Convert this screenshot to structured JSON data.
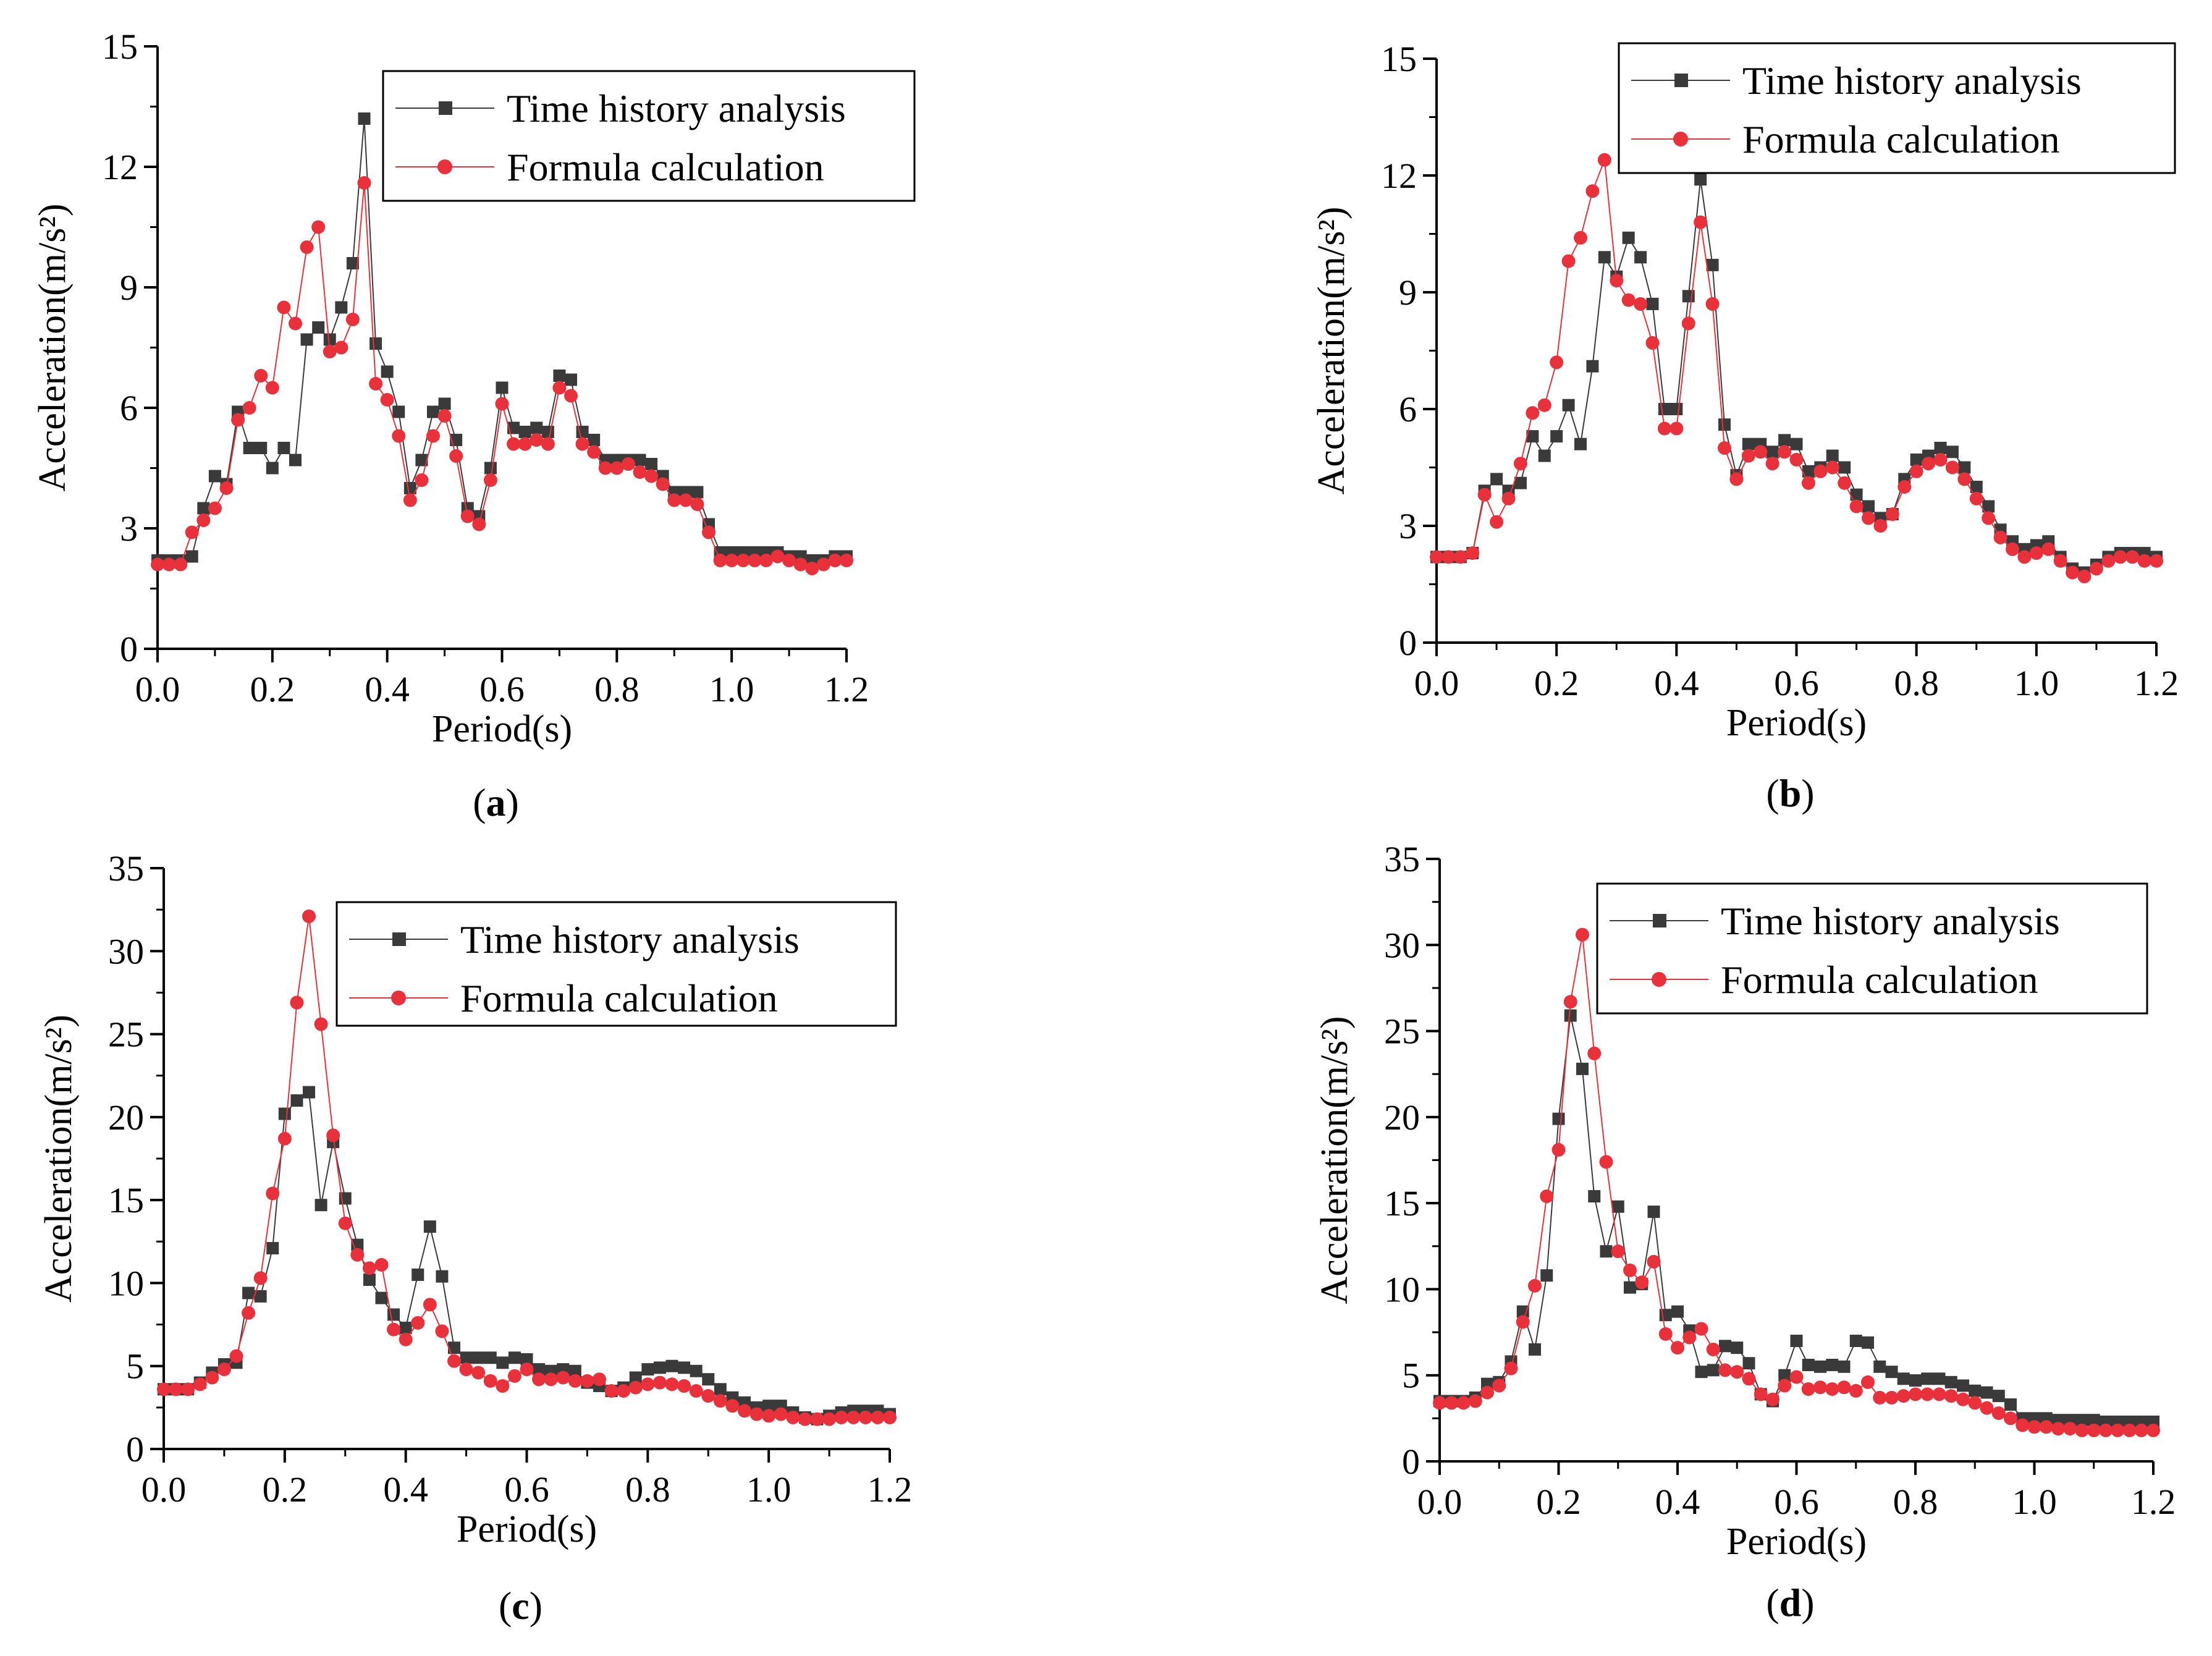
{
  "figure": {
    "colors": {
      "time_history": "#3a3a3a",
      "formula": "#e8313a",
      "axis": "#000000"
    }
  },
  "chart_data": [
    {
      "panel": "a",
      "panel_label": [
        "(",
        "a",
        ")"
      ],
      "type": "line",
      "xlabel": "Period(s)",
      "ylabel": "Acceleration(m/s²)",
      "xlim": [
        0,
        1.2
      ],
      "ylim": [
        0,
        15
      ],
      "xticks": [
        0,
        0.2,
        0.4,
        0.6,
        0.8,
        1.0,
        1.2
      ],
      "xtick_labels": [
        "0.0",
        "0.2",
        "0.4",
        "0.6",
        "0.8",
        "1.0",
        "1.2"
      ],
      "yticks": [
        0,
        3,
        6,
        9,
        12,
        15
      ],
      "ytick_labels": [
        "0",
        "3",
        "6",
        "9",
        "12",
        "15"
      ],
      "legend": {
        "position": "top-right",
        "entries": [
          "Time history analysis",
          "Formula calculation"
        ]
      },
      "x": [
        0,
        0.02,
        0.04,
        0.06,
        0.08,
        0.1,
        0.12,
        0.14,
        0.16,
        0.18,
        0.2,
        0.22,
        0.24,
        0.26,
        0.28,
        0.3,
        0.32,
        0.34,
        0.36,
        0.38,
        0.4,
        0.42,
        0.44,
        0.46,
        0.48,
        0.5,
        0.52,
        0.54,
        0.56,
        0.58,
        0.6,
        0.62,
        0.64,
        0.66,
        0.68,
        0.7,
        0.72,
        0.74,
        0.76,
        0.78,
        0.8,
        0.82,
        0.84,
        0.86,
        0.88,
        0.9,
        0.92,
        0.94,
        0.96,
        0.98,
        1.0,
        1.02,
        1.04,
        1.06,
        1.08,
        1.1,
        1.12,
        1.14,
        1.16,
        1.18,
        1.2
      ],
      "series": [
        {
          "name": "Time history analysis",
          "marker": "square",
          "values": [
            2.2,
            2.2,
            2.2,
            2.3,
            3.5,
            4.3,
            4.1,
            5.9,
            5.0,
            5.0,
            4.5,
            5.0,
            4.7,
            7.7,
            8.0,
            7.7,
            8.5,
            9.6,
            13.2,
            7.6,
            6.9,
            5.9,
            4.0,
            4.7,
            5.9,
            6.1,
            5.2,
            3.5,
            3.3,
            4.5,
            6.5,
            5.5,
            5.4,
            5.5,
            5.4,
            6.8,
            6.7,
            5.4,
            5.2,
            4.7,
            4.7,
            4.7,
            4.7,
            4.6,
            4.3,
            3.9,
            3.9,
            3.9,
            3.1,
            2.4,
            2.4,
            2.4,
            2.4,
            2.4,
            2.4,
            2.3,
            2.3,
            2.2,
            2.2,
            2.3,
            2.3
          ]
        },
        {
          "name": "Formula calculation",
          "marker": "circle",
          "values": [
            2.1,
            2.1,
            2.1,
            2.9,
            3.2,
            3.5,
            4.0,
            5.7,
            6.0,
            6.8,
            6.5,
            8.5,
            8.1,
            10.0,
            10.5,
            7.4,
            7.5,
            8.2,
            11.6,
            6.6,
            6.2,
            5.3,
            3.7,
            4.2,
            5.3,
            5.8,
            4.8,
            3.3,
            3.1,
            4.2,
            6.1,
            5.1,
            5.1,
            5.2,
            5.1,
            6.5,
            6.3,
            5.1,
            4.9,
            4.5,
            4.5,
            4.6,
            4.4,
            4.3,
            4.1,
            3.7,
            3.7,
            3.6,
            2.9,
            2.2,
            2.2,
            2.2,
            2.2,
            2.2,
            2.3,
            2.2,
            2.1,
            2.0,
            2.1,
            2.2,
            2.2
          ]
        }
      ]
    },
    {
      "panel": "b",
      "panel_label": [
        "(",
        "b",
        ")"
      ],
      "type": "line",
      "xlabel": "Period(s)",
      "ylabel": "Acceleration(m/s²)",
      "xlim": [
        0,
        1.2
      ],
      "ylim": [
        0,
        15
      ],
      "xticks": [
        0,
        0.2,
        0.4,
        0.6,
        0.8,
        1.0,
        1.2
      ],
      "xtick_labels": [
        "0.0",
        "0.2",
        "0.4",
        "0.6",
        "0.8",
        "1.0",
        "1.2"
      ],
      "yticks": [
        0,
        3,
        6,
        9,
        12,
        15
      ],
      "ytick_labels": [
        "0",
        "3",
        "6",
        "9",
        "12",
        "15"
      ],
      "legend": {
        "position": "top-right",
        "entries": [
          "Time history analysis",
          "Formula calculation"
        ]
      },
      "x": [
        0,
        0.02,
        0.04,
        0.06,
        0.08,
        0.1,
        0.12,
        0.14,
        0.16,
        0.18,
        0.2,
        0.22,
        0.24,
        0.26,
        0.28,
        0.3,
        0.32,
        0.34,
        0.36,
        0.38,
        0.4,
        0.42,
        0.44,
        0.46,
        0.48,
        0.5,
        0.52,
        0.54,
        0.56,
        0.58,
        0.6,
        0.62,
        0.64,
        0.66,
        0.68,
        0.7,
        0.72,
        0.74,
        0.76,
        0.78,
        0.8,
        0.82,
        0.84,
        0.86,
        0.88,
        0.9,
        0.92,
        0.94,
        0.96,
        0.98,
        1.0,
        1.02,
        1.04,
        1.06,
        1.08,
        1.1,
        1.12,
        1.14,
        1.16,
        1.18,
        1.2
      ],
      "series": [
        {
          "name": "Time history analysis",
          "marker": "square",
          "values": [
            2.2,
            2.2,
            2.2,
            2.3,
            3.9,
            4.2,
            3.9,
            4.1,
            5.3,
            4.8,
            5.3,
            6.1,
            5.1,
            7.1,
            9.9,
            9.4,
            10.4,
            9.9,
            8.7,
            6.0,
            6.0,
            8.9,
            11.9,
            9.7,
            5.6,
            4.3,
            5.1,
            5.1,
            4.9,
            5.2,
            5.1,
            4.4,
            4.5,
            4.8,
            4.5,
            3.8,
            3.5,
            3.2,
            3.3,
            4.2,
            4.7,
            4.8,
            5.0,
            4.9,
            4.5,
            4.0,
            3.5,
            2.9,
            2.6,
            2.4,
            2.5,
            2.6,
            2.2,
            1.9,
            1.8,
            2.0,
            2.2,
            2.3,
            2.3,
            2.3,
            2.2
          ]
        },
        {
          "name": "Formula calculation",
          "marker": "circle",
          "values": [
            2.2,
            2.2,
            2.2,
            2.3,
            3.8,
            3.1,
            3.7,
            4.6,
            5.9,
            6.1,
            7.2,
            9.8,
            10.4,
            11.6,
            12.4,
            9.3,
            8.8,
            8.7,
            7.7,
            5.5,
            5.5,
            8.2,
            10.8,
            8.7,
            5.0,
            4.2,
            4.8,
            4.9,
            4.6,
            4.9,
            4.7,
            4.1,
            4.4,
            4.5,
            4.1,
            3.5,
            3.2,
            3.0,
            3.3,
            4.0,
            4.4,
            4.6,
            4.7,
            4.5,
            4.2,
            3.7,
            3.2,
            2.7,
            2.4,
            2.2,
            2.3,
            2.4,
            2.1,
            1.8,
            1.7,
            1.9,
            2.1,
            2.2,
            2.2,
            2.1,
            2.1
          ]
        }
      ]
    },
    {
      "panel": "c",
      "panel_label": [
        "(",
        "c",
        ")"
      ],
      "type": "line",
      "xlabel": "Period(s)",
      "ylabel": "Acceleration(m/s²)",
      "xlim": [
        0,
        1.2
      ],
      "ylim": [
        0,
        35
      ],
      "xticks": [
        0,
        0.2,
        0.4,
        0.6,
        0.8,
        1.0,
        1.2
      ],
      "xtick_labels": [
        "0.0",
        "0.2",
        "0.4",
        "0.6",
        "0.8",
        "1.0",
        "1.2"
      ],
      "yticks": [
        0,
        5,
        10,
        15,
        20,
        25,
        30,
        35
      ],
      "ytick_labels": [
        "0",
        "5",
        "10",
        "15",
        "20",
        "25",
        "30",
        "35"
      ],
      "legend": {
        "position": "top-right",
        "entries": [
          "Time history analysis",
          "Formula calculation"
        ]
      },
      "x": [
        0,
        0.02,
        0.04,
        0.06,
        0.08,
        0.1,
        0.12,
        0.14,
        0.16,
        0.18,
        0.2,
        0.22,
        0.24,
        0.26,
        0.28,
        0.3,
        0.32,
        0.34,
        0.36,
        0.38,
        0.4,
        0.42,
        0.44,
        0.46,
        0.48,
        0.5,
        0.52,
        0.54,
        0.56,
        0.58,
        0.6,
        0.62,
        0.64,
        0.66,
        0.68,
        0.7,
        0.72,
        0.74,
        0.76,
        0.78,
        0.8,
        0.82,
        0.84,
        0.86,
        0.88,
        0.9,
        0.92,
        0.94,
        0.96,
        0.98,
        1.0,
        1.02,
        1.04,
        1.06,
        1.08,
        1.1,
        1.12,
        1.14,
        1.16,
        1.18,
        1.2
      ],
      "series": [
        {
          "name": "Time history analysis",
          "marker": "square",
          "values": [
            3.6,
            3.6,
            3.6,
            4.0,
            4.6,
            5.1,
            5.2,
            9.4,
            9.2,
            12.1,
            20.2,
            21.0,
            21.5,
            14.7,
            18.5,
            15.1,
            12.3,
            10.2,
            9.1,
            8.1,
            7.3,
            10.5,
            13.4,
            10.4,
            6.1,
            5.5,
            5.5,
            5.5,
            5.2,
            5.5,
            5.4,
            4.8,
            4.7,
            4.8,
            4.7,
            4.0,
            3.8,
            3.5,
            3.7,
            4.3,
            4.8,
            4.9,
            5.0,
            4.9,
            4.7,
            4.2,
            3.6,
            3.1,
            2.8,
            2.5,
            2.6,
            2.6,
            2.2,
            1.9,
            1.8,
            2.0,
            2.2,
            2.3,
            2.3,
            2.3,
            2.1
          ]
        },
        {
          "name": "Formula calculation",
          "marker": "circle",
          "values": [
            3.6,
            3.6,
            3.6,
            3.9,
            4.3,
            4.8,
            5.6,
            8.2,
            10.3,
            15.4,
            18.7,
            26.9,
            32.1,
            25.6,
            18.9,
            13.6,
            11.7,
            10.9,
            11.1,
            7.2,
            6.6,
            7.6,
            8.7,
            7.1,
            5.3,
            4.8,
            4.6,
            4.1,
            3.8,
            4.4,
            4.8,
            4.2,
            4.2,
            4.3,
            4.1,
            4.1,
            4.2,
            3.5,
            3.5,
            3.7,
            3.9,
            4.0,
            3.9,
            3.8,
            3.5,
            3.2,
            2.9,
            2.6,
            2.3,
            2.1,
            2.0,
            2.1,
            1.9,
            1.8,
            1.8,
            1.8,
            1.9,
            1.9,
            1.9,
            1.9,
            1.9
          ]
        }
      ]
    },
    {
      "panel": "d",
      "panel_label": [
        "(",
        "d",
        ")"
      ],
      "type": "line",
      "xlabel": "Period(s)",
      "ylabel": "Acceleration(m/s²)",
      "xlim": [
        0,
        1.2
      ],
      "ylim": [
        0,
        35
      ],
      "xticks": [
        0,
        0.2,
        0.4,
        0.6,
        0.8,
        1.0,
        1.2
      ],
      "xtick_labels": [
        "0.0",
        "0.2",
        "0.4",
        "0.6",
        "0.8",
        "1.0",
        "1.2"
      ],
      "yticks": [
        0,
        5,
        10,
        15,
        20,
        25,
        30,
        35
      ],
      "ytick_labels": [
        "0",
        "5",
        "10",
        "15",
        "20",
        "25",
        "30",
        "35"
      ],
      "legend": {
        "position": "top-right",
        "entries": [
          "Time history analysis",
          "Formula calculation"
        ]
      },
      "x": [
        0,
        0.02,
        0.04,
        0.06,
        0.08,
        0.1,
        0.12,
        0.14,
        0.16,
        0.18,
        0.2,
        0.22,
        0.24,
        0.26,
        0.28,
        0.3,
        0.32,
        0.34,
        0.36,
        0.38,
        0.4,
        0.42,
        0.44,
        0.46,
        0.48,
        0.5,
        0.52,
        0.54,
        0.56,
        0.58,
        0.6,
        0.62,
        0.64,
        0.66,
        0.68,
        0.7,
        0.72,
        0.74,
        0.76,
        0.78,
        0.8,
        0.82,
        0.84,
        0.86,
        0.88,
        0.9,
        0.92,
        0.94,
        0.96,
        0.98,
        1.0,
        1.02,
        1.04,
        1.06,
        1.08,
        1.1,
        1.12,
        1.14,
        1.16,
        1.18,
        1.2
      ],
      "series": [
        {
          "name": "Time history analysis",
          "marker": "square",
          "values": [
            3.5,
            3.5,
            3.5,
            3.7,
            4.5,
            4.6,
            5.8,
            8.7,
            6.5,
            10.8,
            19.9,
            25.9,
            22.8,
            15.4,
            12.2,
            14.8,
            10.1,
            10.3,
            14.5,
            8.5,
            8.7,
            7.6,
            5.2,
            5.3,
            6.7,
            6.6,
            5.7,
            3.9,
            3.5,
            5.0,
            7.0,
            5.6,
            5.5,
            5.6,
            5.5,
            7.0,
            6.9,
            5.5,
            5.2,
            4.8,
            4.7,
            4.8,
            4.8,
            4.6,
            4.4,
            4.1,
            4.0,
            3.8,
            3.3,
            2.5,
            2.5,
            2.5,
            2.4,
            2.4,
            2.4,
            2.4,
            2.3,
            2.3,
            2.3,
            2.3,
            2.3
          ]
        },
        {
          "name": "Formula calculation",
          "marker": "circle",
          "values": [
            3.4,
            3.4,
            3.4,
            3.5,
            4.0,
            4.4,
            5.4,
            8.1,
            10.2,
            15.4,
            18.1,
            26.7,
            30.6,
            23.7,
            17.4,
            12.2,
            11.1,
            10.4,
            11.6,
            7.4,
            6.6,
            7.2,
            7.7,
            6.5,
            5.3,
            5.2,
            4.8,
            3.9,
            3.6,
            4.4,
            4.9,
            4.2,
            4.3,
            4.2,
            4.3,
            4.1,
            4.6,
            3.7,
            3.7,
            3.8,
            3.9,
            3.9,
            3.9,
            3.8,
            3.6,
            3.4,
            3.1,
            2.8,
            2.5,
            2.1,
            2.0,
            2.0,
            1.9,
            1.9,
            1.8,
            1.8,
            1.8,
            1.8,
            1.8,
            1.8,
            1.8
          ]
        }
      ]
    }
  ]
}
